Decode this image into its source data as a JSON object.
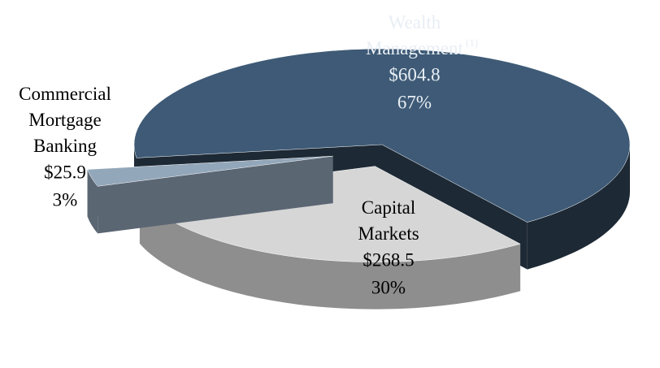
{
  "chart_data": {
    "type": "pie",
    "categories": [
      "Wealth Management",
      "Capital Markets",
      "Commercial Mortgage Banking"
    ],
    "footnote_marks": [
      "(1)",
      null,
      null
    ],
    "values": [
      604.8,
      268.5,
      25.9
    ],
    "value_labels": [
      "$604.8",
      "$268.5",
      "$25.9"
    ],
    "percents": [
      67,
      30,
      3
    ],
    "percent_labels": [
      "67%",
      "30%",
      "3%"
    ],
    "colors": [
      "#3e5a76",
      "#d6d6d6",
      "#93a7ba"
    ],
    "side_colors": [
      "#1d2935",
      "#8e8e8e",
      "#5b6673"
    ],
    "label_colors": [
      "#e8eef4",
      "#000000",
      "#000000"
    ]
  }
}
